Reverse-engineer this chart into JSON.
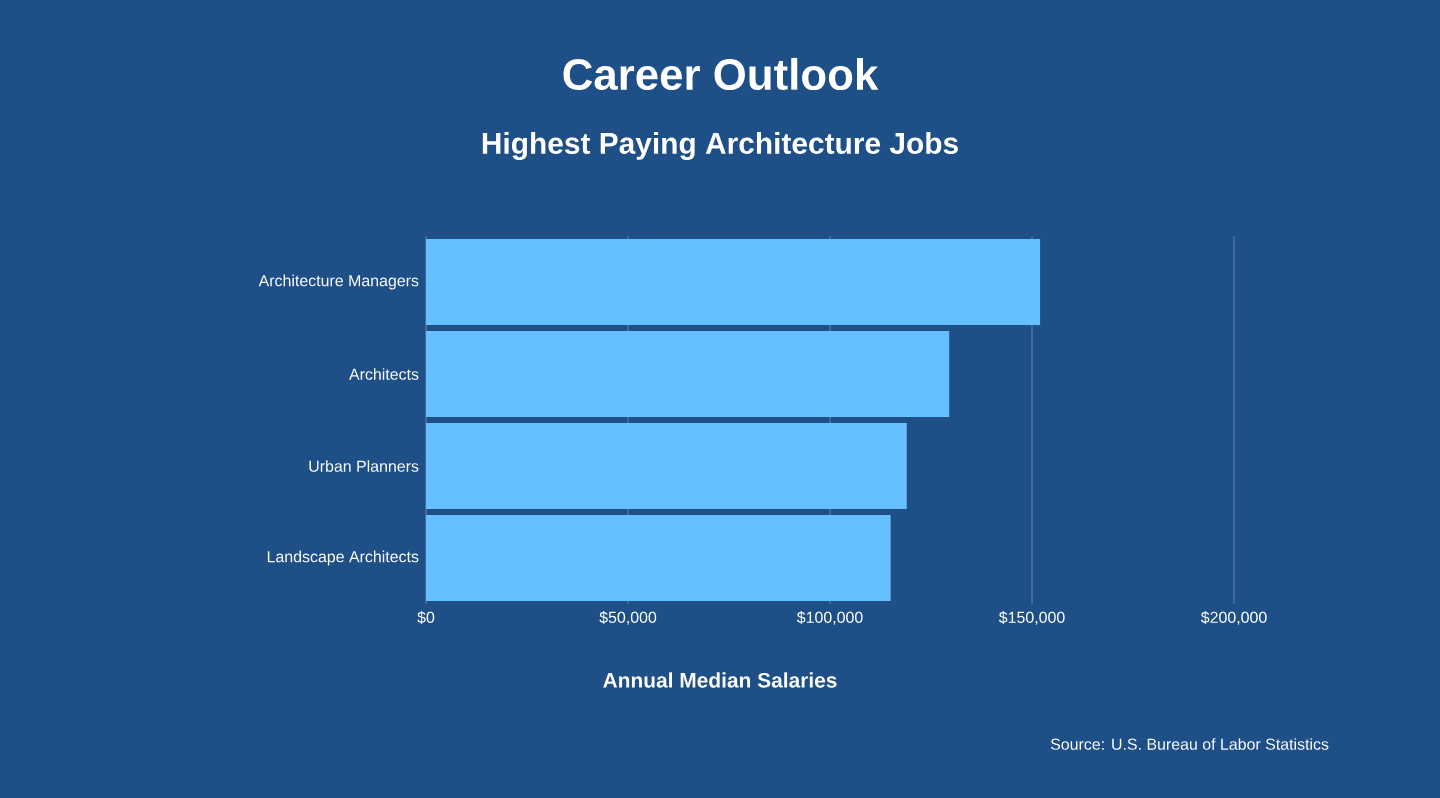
{
  "chart_data": {
    "type": "bar",
    "orientation": "horizontal",
    "title": "Career Outlook",
    "subtitle": "Highest Paying Architecture Jobs",
    "xlabel": "Annual Median Salaries",
    "categories": [
      "Architecture Managers",
      "Architects",
      "Urban Planners",
      "Landscape Architects"
    ],
    "values": [
      152000,
      129500,
      119000,
      115000
    ],
    "color": "#66bfff",
    "xlim": [
      0,
      200000
    ],
    "xticks": [
      {
        "value": 0,
        "label": "$0"
      },
      {
        "value": 50000,
        "label": "$50,000"
      },
      {
        "value": 100000,
        "label": "$100,000"
      },
      {
        "value": 150000,
        "label": "$150,000"
      },
      {
        "value": 200000,
        "label": "$200,000"
      }
    ],
    "grid": "x",
    "annotations": [
      "Source: U.S. Bureau of Labor Statistics"
    ]
  }
}
